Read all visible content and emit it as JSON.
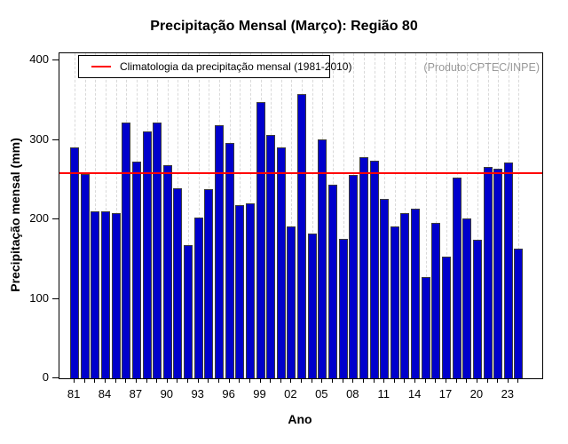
{
  "title": "Precipitação Mensal (Março): Região 80",
  "watermark": "(Produto:CPTEC/INPE)",
  "legend": {
    "label": "Climatologia da precipitação mensal (1981-2010)",
    "line_color": "#FF0000"
  },
  "chart_data": {
    "type": "bar",
    "title": "Precipitação Mensal (Março): Região 80",
    "xlabel": "Ano",
    "ylabel": "Precipitação mensal (mm)",
    "ylim": [
      0,
      400
    ],
    "yticks": [
      0,
      100,
      200,
      300,
      400
    ],
    "grid": "vertical-dashed",
    "legend_position": "top-left",
    "bar_color": "#0000CC",
    "climatology_value": 258,
    "climatology_color": "#FF0000",
    "years": [
      1981,
      1982,
      1983,
      1984,
      1985,
      1986,
      1987,
      1988,
      1989,
      1990,
      1991,
      1992,
      1993,
      1994,
      1995,
      1996,
      1997,
      1998,
      1999,
      2000,
      2001,
      2002,
      2003,
      2004,
      2005,
      2006,
      2007,
      2008,
      2009,
      2010,
      2011,
      2012,
      2013,
      2014,
      2015,
      2016,
      2017,
      2018,
      2019,
      2020,
      2021,
      2022,
      2023,
      2024
    ],
    "values": [
      290,
      257,
      210,
      210,
      208,
      322,
      273,
      311,
      322,
      268,
      239,
      168,
      202,
      238,
      318,
      296,
      218,
      220,
      347,
      306,
      290,
      191,
      357,
      182,
      301,
      244,
      175,
      256,
      278,
      274,
      226,
      191,
      208,
      213,
      127,
      195,
      153,
      252,
      201,
      174,
      266,
      264,
      271,
      163
    ],
    "xtick_labels": [
      "81",
      "84",
      "87",
      "90",
      "93",
      "96",
      "99",
      "02",
      "05",
      "08",
      "11",
      "14",
      "17",
      "20",
      "23"
    ]
  }
}
